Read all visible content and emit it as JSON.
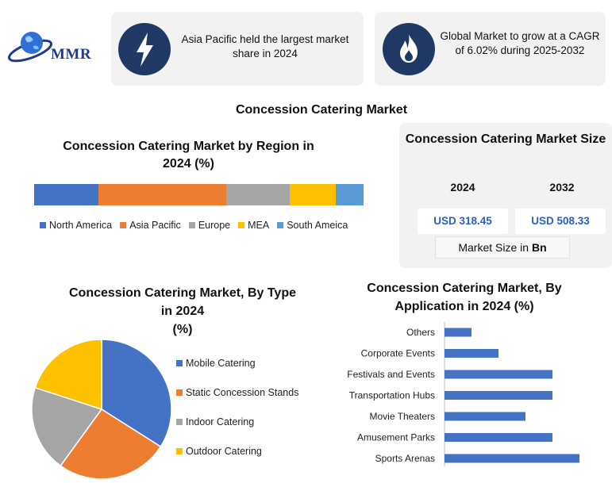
{
  "logo": {
    "text": "MMR"
  },
  "cards": [
    {
      "icon": "lightning-icon",
      "text": "Asia Pacific held the largest market share in 2024"
    },
    {
      "icon": "flame-icon",
      "text": "Global Market to grow at a CAGR of 6.02% during 2025-2032"
    }
  ],
  "main_title": "Concession Catering Market",
  "market_size": {
    "title": "Concession Catering Market Size",
    "year1": "2024",
    "year2": "2032",
    "value1": "USD 318.45",
    "value2": "USD 508.33",
    "unit_prefix": "Market Size in ",
    "unit_bold": "Bn"
  },
  "chart_data": [
    {
      "type": "bar",
      "orientation": "stacked-horizontal",
      "title": "Concession Catering Market by Region in 2024 (%)",
      "categories": [
        "North America",
        "Asia Pacific",
        "Europe",
        "MEA",
        "South Ameica"
      ],
      "values": [
        19.5,
        39,
        19.5,
        14,
        8.5
      ],
      "colors": [
        "#4472c4",
        "#ed7d31",
        "#a5a5a5",
        "#ffc000",
        "#5b9bd5"
      ],
      "legend": "bottom"
    },
    {
      "type": "pie",
      "title_lines": [
        "Concession Catering Market, By Type",
        "in 2024",
        "(%)"
      ],
      "categories": [
        "Mobile Catering",
        "Static Concession Stands",
        "Indoor Catering",
        "Outdoor Catering"
      ],
      "values": [
        34,
        26,
        20,
        20
      ],
      "colors": [
        "#4472c4",
        "#ed7d31",
        "#a5a5a5",
        "#ffc000"
      ],
      "legend": "right"
    },
    {
      "type": "bar",
      "orientation": "horizontal",
      "title_lines": [
        "Concession Catering Market, By",
        "Application in 2024 (%)"
      ],
      "categories": [
        "Others",
        "Corporate Events",
        "Festivals and Events",
        "Transportation Hubs",
        "Movie Theaters",
        "Amusement Parks",
        "Sports Arenas"
      ],
      "values": [
        5,
        10,
        20,
        20,
        15,
        20,
        25
      ],
      "color": "#4472c4",
      "xlim": [
        0,
        25
      ]
    }
  ]
}
